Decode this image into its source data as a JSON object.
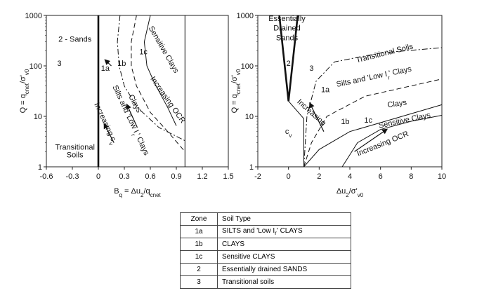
{
  "chart_data": [
    {
      "type": "line",
      "title": "",
      "xlabel": "B_q = Δu_2/q_cnet",
      "ylabel": "Q = q_cnet/σ'_v0",
      "xlim": [
        -0.6,
        1.5
      ],
      "ylim": [
        1,
        1000
      ],
      "y_scale": "log",
      "x_ticks": [
        "-0.6",
        "-0.3",
        "0",
        "0.3",
        "0.6",
        "0.9",
        "1.2",
        "1.5"
      ],
      "x_tick_values": [
        -0.6,
        -0.3,
        0,
        0.3,
        0.6,
        0.9,
        1.2,
        1.5
      ],
      "y_ticks": [
        "1",
        "10",
        "100",
        "1000"
      ],
      "y_tick_values": [
        1,
        10,
        100,
        1000
      ],
      "grid": false,
      "series": [
        {
          "style": "solid-thick",
          "points": [
            [
              0,
              1
            ],
            [
              0,
              1000
            ]
          ]
        },
        {
          "style": "solid",
          "points": [
            [
              1,
              1
            ],
            [
              1,
              1000
            ]
          ]
        },
        {
          "style": "dashdot",
          "points": [
            [
              0.25,
              1000
            ],
            [
              0.22,
              300
            ],
            [
              0.24,
              100
            ],
            [
              0.3,
              40
            ],
            [
              0.45,
              15
            ],
            [
              0.7,
              6
            ],
            [
              1.0,
              3.3
            ]
          ]
        },
        {
          "style": "dashed",
          "points": [
            [
              0.44,
              1000
            ],
            [
              0.38,
              300
            ],
            [
              0.38,
              100
            ],
            [
              0.44,
              40
            ],
            [
              0.6,
              12
            ],
            [
              0.8,
              5
            ],
            [
              1.0,
              2
            ]
          ]
        },
        {
          "style": "solid",
          "points": [
            [
              0.6,
              1000
            ],
            [
              0.53,
              300
            ],
            [
              0.56,
              100
            ],
            [
              0.65,
              45
            ],
            [
              0.8,
              15
            ],
            [
              0.9,
              6.5
            ]
          ]
        },
        {
          "style": "arrow",
          "points": [
            [
              0.15,
              100
            ],
            [
              0.08,
              130
            ]
          ]
        },
        {
          "style": "arrow",
          "points": [
            [
              0.45,
              6
            ],
            [
              0.33,
              17
            ]
          ]
        },
        {
          "style": "arrow",
          "points": [
            [
              0.18,
              3
            ],
            [
              0.07,
              7
            ]
          ]
        }
      ],
      "zone_labels": [
        {
          "text": "3",
          "x": -0.45,
          "y": 100
        },
        {
          "text": "1a",
          "x": 0.08,
          "y": 80
        },
        {
          "text": "1b",
          "x": 0.27,
          "y": 100
        },
        {
          "text": "1c",
          "x": 0.52,
          "y": 170
        }
      ],
      "annotations": [
        {
          "text": "2 - Sands",
          "x": -0.27,
          "y": 300
        },
        {
          "text": "Sensitive Clays",
          "x": 0.73,
          "y": 200,
          "rotate": 60
        },
        {
          "text": "Increasing OCR",
          "x": 0.78,
          "y": 20,
          "rotate": 55
        },
        {
          "text": "Silts and 'Low I_r' Clays",
          "x": 0.35,
          "y": 8,
          "rotate": 65
        },
        {
          "text": "Clays",
          "x": 0.4,
          "y": 17,
          "rotate": 62
        },
        {
          "text": "Increasing c_v",
          "x": 0.06,
          "y": 7,
          "rotate": 65
        },
        {
          "text": "Transitional",
          "x": -0.27,
          "y": 2.2
        },
        {
          "text": "Soils",
          "x": -0.27,
          "y": 1.55
        }
      ]
    },
    {
      "type": "line",
      "title": "",
      "xlabel": "Δu_2/σ'_v0",
      "ylabel": "Q = q_cnet/σ'_v0",
      "xlim": [
        -2,
        10
      ],
      "ylim": [
        1,
        1000
      ],
      "y_scale": "log",
      "x_ticks": [
        "-2",
        "0",
        "2",
        "4",
        "6",
        "8",
        "10"
      ],
      "x_tick_values": [
        -2,
        0,
        2,
        4,
        6,
        8,
        10
      ],
      "y_ticks": [
        "1",
        "10",
        "100",
        "1000"
      ],
      "y_tick_values": [
        1,
        10,
        100,
        1000
      ],
      "grid": false,
      "series": [
        {
          "style": "solid-thick",
          "points": [
            [
              -0.6,
              1000
            ],
            [
              0,
              20
            ],
            [
              0.6,
              1000
            ]
          ]
        },
        {
          "style": "solid",
          "points": [
            [
              0,
              20
            ],
            [
              1,
              9
            ],
            [
              1,
              1
            ],
            [
              0,
              1
            ]
          ]
        },
        {
          "style": "dashdot",
          "points": [
            [
              1,
              1
            ],
            [
              1.2,
              10
            ],
            [
              1.8,
              50
            ],
            [
              3,
              120
            ],
            [
              6,
              180
            ],
            [
              10,
              230
            ]
          ]
        },
        {
          "style": "dashed",
          "points": [
            [
              1,
              1
            ],
            [
              1.5,
              3
            ],
            [
              2.5,
              10
            ],
            [
              5,
              25
            ],
            [
              10,
              55
            ]
          ]
        },
        {
          "style": "solid",
          "points": [
            [
              3.5,
              1
            ],
            [
              4.5,
              3
            ],
            [
              6,
              5.5
            ],
            [
              8,
              8
            ],
            [
              10,
              10.5
            ]
          ]
        },
        {
          "style": "solid",
          "points": [
            [
              1,
              1
            ],
            [
              2,
              2.2
            ],
            [
              4,
              5
            ],
            [
              6,
              7.5
            ],
            [
              10,
              17
            ]
          ]
        },
        {
          "style": "arrow",
          "points": [
            [
              2.3,
              5
            ],
            [
              1.4,
              18
            ]
          ]
        },
        {
          "style": "arrow",
          "points": [
            [
              4.3,
              2
            ],
            [
              6.4,
              5.5
            ]
          ]
        }
      ],
      "zone_labels": [
        {
          "text": "2",
          "x": 0,
          "y": 100
        },
        {
          "text": "3",
          "x": 1.5,
          "y": 80
        },
        {
          "text": "1a",
          "x": 2.4,
          "y": 30
        },
        {
          "text": "1b",
          "x": 3.7,
          "y": 7
        },
        {
          "text": "1c",
          "x": 5.2,
          "y": 7.5
        }
      ],
      "annotations": [
        {
          "text": "Essentially",
          "x": -0.1,
          "y": 780
        },
        {
          "text": "Drained",
          "x": -0.1,
          "y": 500
        },
        {
          "text": "Sands",
          "x": -0.1,
          "y": 320
        },
        {
          "text": "Transitional Soils",
          "x": 6.3,
          "y": 160,
          "rotate": -14
        },
        {
          "text": "Silts and 'Low I_r' Clays",
          "x": 5.6,
          "y": 55,
          "rotate": -12
        },
        {
          "text": "Clays",
          "x": 7.1,
          "y": 16,
          "rotate": -8
        },
        {
          "text": "Sensitive Clays",
          "x": 7.6,
          "y": 7.5,
          "rotate": -12
        },
        {
          "text": "Increasing",
          "x": 1.4,
          "y": 11,
          "rotate": 42
        },
        {
          "text": "c_v",
          "x": 0,
          "y": 4.5
        },
        {
          "text": "Increasing OCR",
          "x": 6.2,
          "y": 2.6,
          "rotate": -22
        }
      ]
    }
  ],
  "legend_table": {
    "headers": [
      "Zone",
      "Soil Type"
    ],
    "rows": [
      [
        "1a",
        "SILTS and 'Low I_r' CLAYS"
      ],
      [
        "1b",
        "CLAYS"
      ],
      [
        "1c",
        "Sensitive CLAYS"
      ],
      [
        "2",
        "Essentially drained SANDS"
      ],
      [
        "3",
        "Transitional soils"
      ]
    ]
  }
}
